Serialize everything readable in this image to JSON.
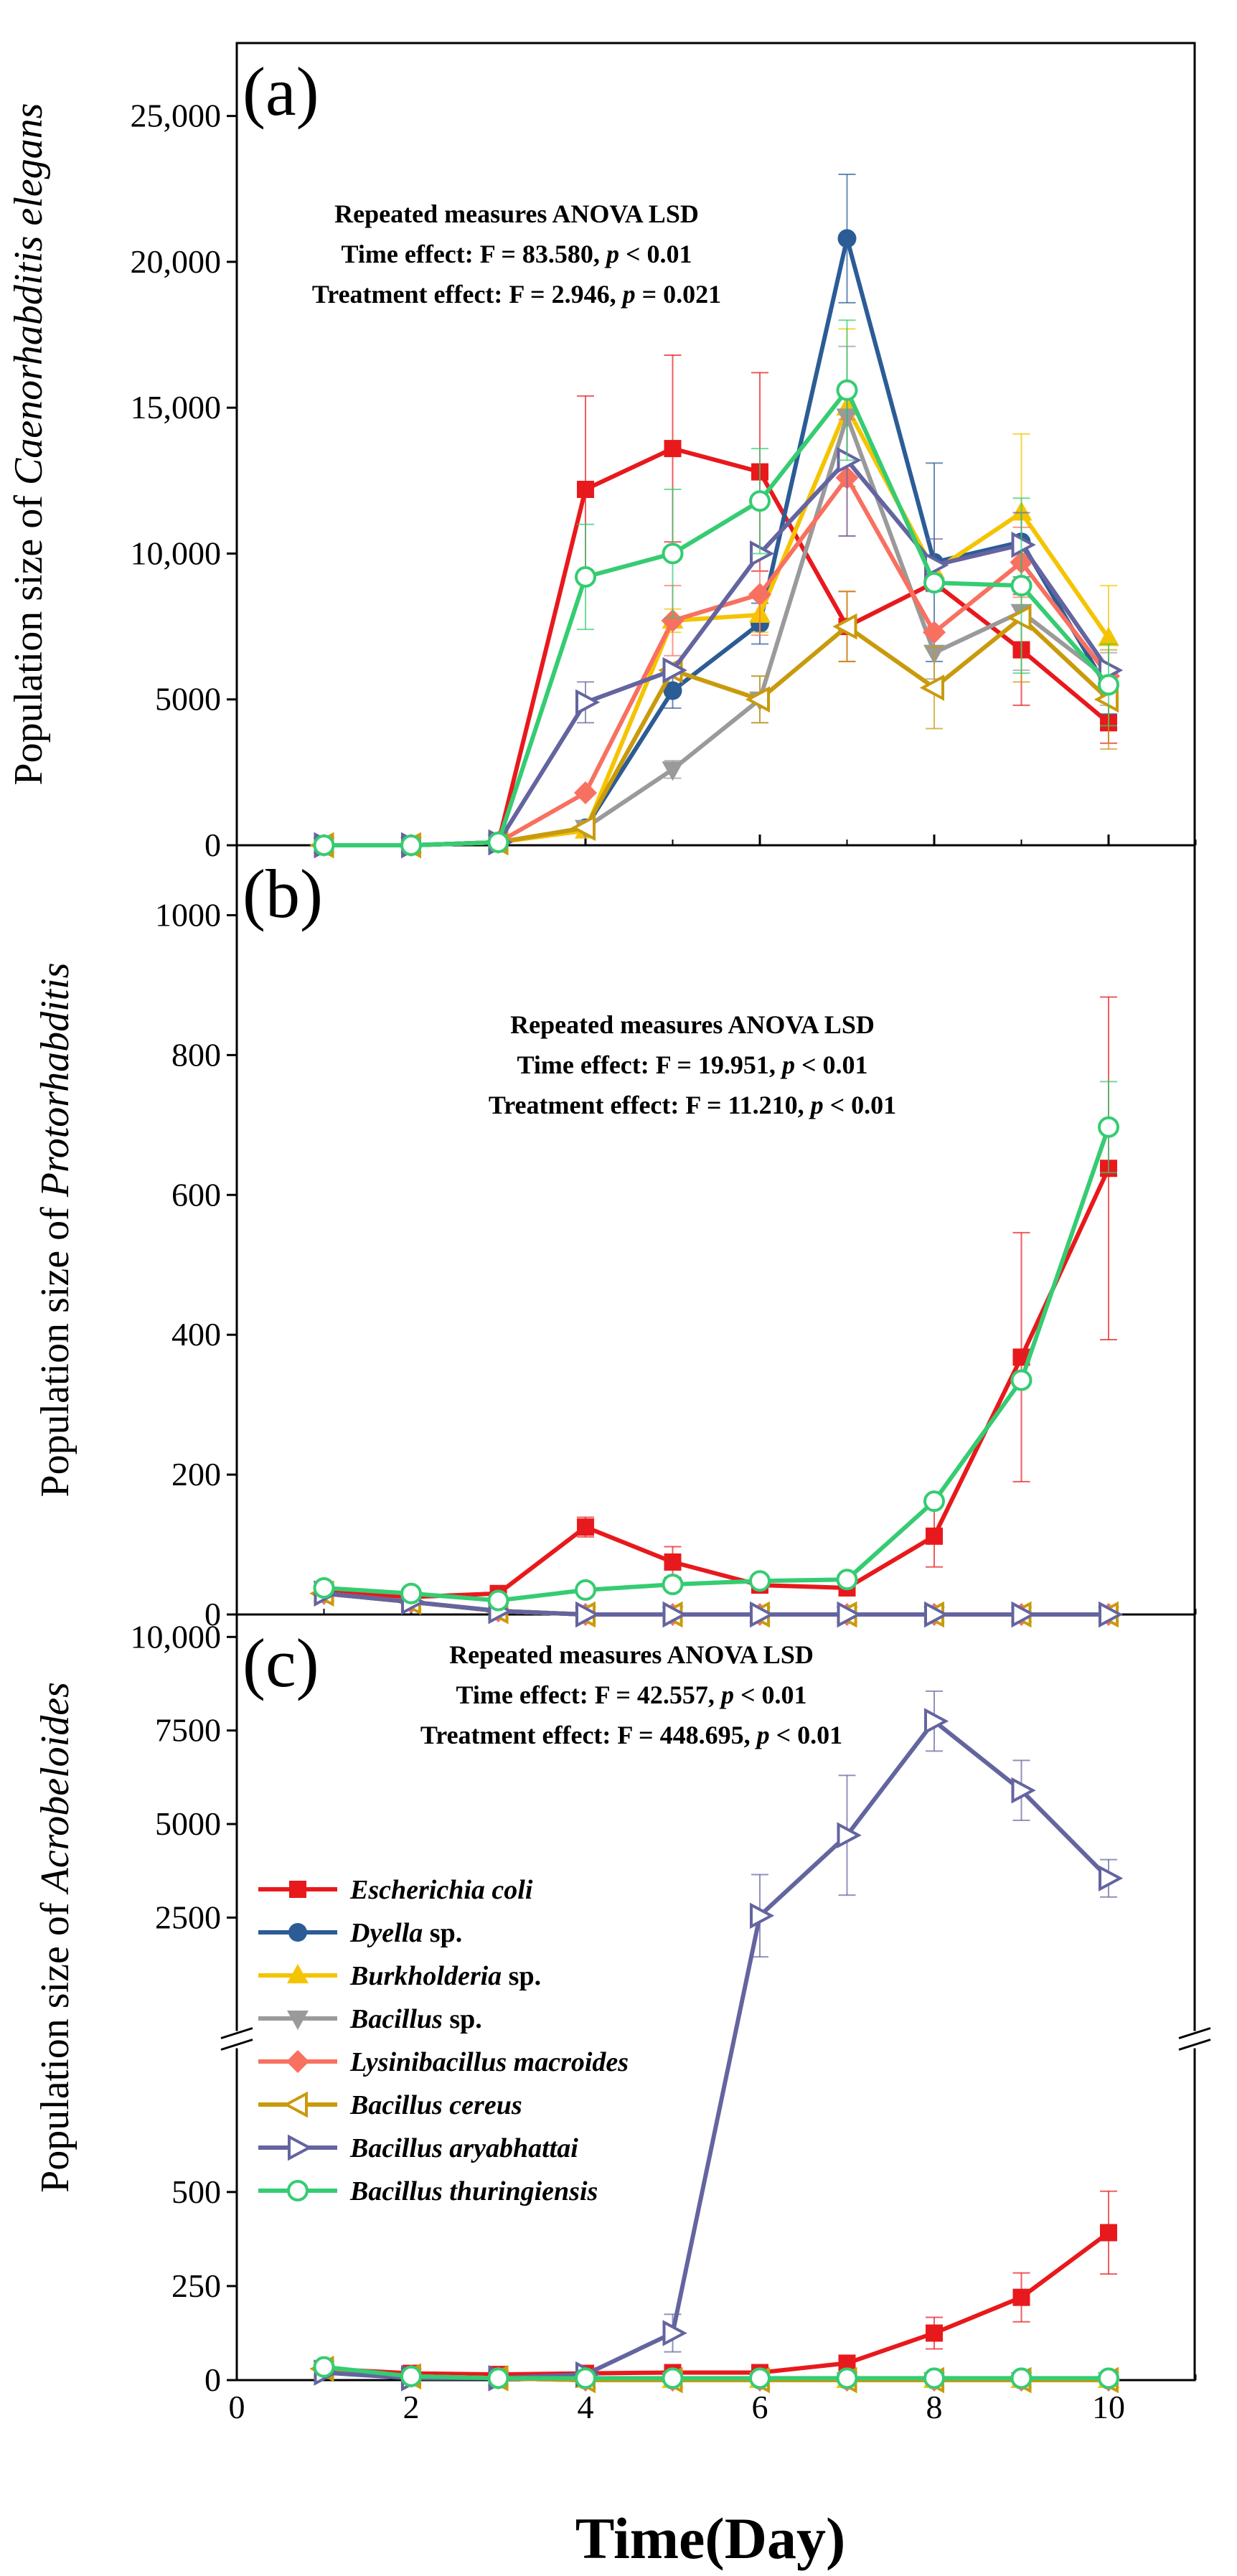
{
  "figure": {
    "xlabel": "Time(Day)",
    "x_ticks": [
      "0",
      "2",
      "4",
      "6",
      "8",
      "10"
    ]
  },
  "chart_data": [
    {
      "type": "line",
      "panel": "(a)",
      "ylabel_prefix": "Population size of ",
      "ylabel_species": "Caenorhabditis elegans",
      "ylim": [
        0,
        27500
      ],
      "y_ticks": [
        {
          "v": 0,
          "label": "0"
        },
        {
          "v": 5000,
          "label": "5000"
        },
        {
          "v": 10000,
          "label": "10,000"
        },
        {
          "v": 15000,
          "label": "15,000"
        },
        {
          "v": 20000,
          "label": "20,000"
        },
        {
          "v": 25000,
          "label": "25,000"
        }
      ],
      "stats": {
        "line1": "Repeated measures ANOVA LSD",
        "line2_pre": "Time effect: F = 83.580, ",
        "line2_post": " < 0.01",
        "line3_pre": "Treatment effect: F = 2.946, ",
        "line3_post": " = 0.021"
      },
      "x": [
        1,
        2,
        3,
        4,
        5,
        6,
        7,
        8,
        9,
        10
      ],
      "series": [
        {
          "name": "Escherichia coli",
          "values": [
            0,
            0,
            100,
            12200,
            13600,
            12800,
            7500,
            9000,
            6700,
            4200
          ],
          "errors": [
            0,
            0,
            0,
            3200,
            3200,
            3400,
            1200,
            0,
            1900,
            700
          ]
        },
        {
          "name": "Dyella sp.",
          "values": [
            0,
            0,
            100,
            600,
            5300,
            7600,
            20800,
            9700,
            10400,
            5300
          ],
          "errors": [
            0,
            0,
            0,
            0,
            600,
            700,
            2200,
            3400,
            800,
            800
          ]
        },
        {
          "name": "Burkholderia sp.",
          "values": [
            0,
            0,
            100,
            500,
            7700,
            7900,
            15000,
            9400,
            11400,
            7100
          ],
          "errors": [
            0,
            0,
            0,
            0,
            400,
            600,
            2700,
            0,
            2700,
            1800
          ]
        },
        {
          "name": "Bacillus sp.",
          "values": [
            0,
            0,
            100,
            600,
            2600,
            5000,
            14700,
            6600,
            8000,
            5700
          ],
          "errors": [
            0,
            0,
            0,
            0,
            300,
            800,
            2400,
            900,
            2000,
            900
          ]
        },
        {
          "name": "Lysinibacillus macroides",
          "values": [
            0,
            0,
            100,
            1800,
            7700,
            8600,
            12600,
            7300,
            9700,
            5800
          ],
          "errors": [
            0,
            0,
            0,
            0,
            1200,
            1400,
            2000,
            0,
            1200,
            0
          ]
        },
        {
          "name": "Bacillus cereus",
          "values": [
            0,
            0,
            100,
            600,
            6000,
            5000,
            7500,
            5400,
            7800,
            5000
          ],
          "errors": [
            0,
            0,
            0,
            0,
            0,
            800,
            1200,
            1400,
            2200,
            1700
          ]
        },
        {
          "name": "Bacillus aryabhattai",
          "values": [
            0,
            0,
            100,
            4900,
            6000,
            10000,
            13200,
            9600,
            10300,
            6000
          ],
          "errors": [
            0,
            0,
            0,
            700,
            0,
            0,
            2600,
            900,
            1100,
            0
          ]
        },
        {
          "name": "Bacillus thuringiensis",
          "values": [
            0,
            0,
            100,
            9200,
            10000,
            11800,
            15600,
            9000,
            8900,
            5500
          ],
          "errors": [
            0,
            0,
            0,
            1800,
            2200,
            1800,
            2400,
            0,
            3000,
            1400
          ]
        }
      ]
    },
    {
      "type": "line",
      "panel": "(b)",
      "ylabel_prefix": "Population size of ",
      "ylabel_species": "Protorhabditis",
      "ylim": [
        0,
        1100
      ],
      "y_ticks": [
        {
          "v": 0,
          "label": "0"
        },
        {
          "v": 200,
          "label": "200"
        },
        {
          "v": 400,
          "label": "400"
        },
        {
          "v": 600,
          "label": "600"
        },
        {
          "v": 800,
          "label": "800"
        },
        {
          "v": 1000,
          "label": "1000"
        }
      ],
      "stats": {
        "line1": "Repeated measures ANOVA LSD",
        "line2_pre": "Time effect: F = 19.951, ",
        "line2_post": " < 0.01",
        "line3_pre": "Treatment effect: F = 11.210, ",
        "line3_post": " < 0.01"
      },
      "x": [
        1,
        2,
        3,
        4,
        5,
        6,
        7,
        8,
        9,
        10
      ],
      "series": [
        {
          "name": "Escherichia coli",
          "values": [
            33,
            25,
            30,
            125,
            75,
            42,
            38,
            112,
            368,
            638
          ],
          "errors": [
            0,
            0,
            0,
            14,
            22,
            0,
            0,
            44,
            178,
            245
          ]
        },
        {
          "name": "Dyella sp.",
          "values": [
            30,
            18,
            5,
            0,
            0,
            0,
            0,
            0,
            0,
            0
          ],
          "errors": [
            0,
            0,
            0,
            0,
            0,
            0,
            0,
            0,
            0,
            0
          ]
        },
        {
          "name": "Burkholderia sp.",
          "values": [
            30,
            18,
            5,
            0,
            0,
            0,
            0,
            0,
            0,
            0
          ],
          "errors": [
            0,
            0,
            0,
            0,
            0,
            0,
            0,
            0,
            0,
            0
          ]
        },
        {
          "name": "Bacillus sp.",
          "values": [
            30,
            18,
            5,
            0,
            0,
            0,
            0,
            0,
            0,
            0
          ],
          "errors": [
            0,
            0,
            0,
            0,
            0,
            0,
            0,
            0,
            0,
            0
          ]
        },
        {
          "name": "Lysinibacillus macroides",
          "values": [
            30,
            18,
            5,
            0,
            0,
            0,
            0,
            0,
            0,
            0
          ],
          "errors": [
            0,
            0,
            0,
            0,
            0,
            0,
            0,
            0,
            0,
            0
          ]
        },
        {
          "name": "Bacillus cereus",
          "values": [
            30,
            18,
            5,
            0,
            0,
            0,
            0,
            0,
            0,
            0
          ],
          "errors": [
            0,
            0,
            0,
            0,
            0,
            0,
            0,
            0,
            0,
            0
          ]
        },
        {
          "name": "Bacillus aryabhattai",
          "values": [
            30,
            18,
            5,
            0,
            0,
            0,
            0,
            0,
            0,
            0
          ],
          "errors": [
            0,
            0,
            0,
            0,
            0,
            0,
            0,
            0,
            0,
            0
          ]
        },
        {
          "name": "Bacillus thuringiensis",
          "values": [
            38,
            30,
            20,
            35,
            43,
            48,
            50,
            162,
            335,
            697
          ],
          "errors": [
            0,
            0,
            0,
            0,
            0,
            0,
            0,
            0,
            0,
            65
          ]
        }
      ]
    },
    {
      "type": "line",
      "panel": "(c)",
      "ylabel_prefix": "Population size of ",
      "ylabel_species": "Acrobeloides",
      "axis_break": {
        "lower_range": [
          0,
          700
        ],
        "upper_range": [
          1300,
          10600
        ]
      },
      "y_ticks": [
        {
          "v": 0,
          "label": "0"
        },
        {
          "v": 250,
          "label": "250"
        },
        {
          "v": 500,
          "label": "500"
        },
        {
          "v": 2500,
          "label": "2500"
        },
        {
          "v": 5000,
          "label": "5000"
        },
        {
          "v": 7500,
          "label": "7500"
        },
        {
          "v": 10000,
          "label": "10,000"
        }
      ],
      "stats": {
        "line1": "Repeated measures ANOVA LSD",
        "line2_pre": "Time effect: F = 42.557, ",
        "line2_post": " < 0.01",
        "line3_pre": "Treatment effect: F = 448.695, ",
        "line3_post": " < 0.01"
      },
      "x": [
        1,
        2,
        3,
        4,
        5,
        6,
        7,
        8,
        9,
        10
      ],
      "series": [
        {
          "name": "Escherichia coli",
          "values": [
            30,
            18,
            15,
            18,
            20,
            20,
            45,
            125,
            220,
            392
          ],
          "errors": [
            0,
            0,
            0,
            0,
            0,
            0,
            0,
            42,
            65,
            110
          ]
        },
        {
          "name": "Dyella sp.",
          "values": [
            30,
            10,
            5,
            0,
            0,
            0,
            0,
            0,
            0,
            0
          ],
          "errors": [
            0,
            0,
            0,
            0,
            0,
            0,
            0,
            0,
            0,
            0
          ]
        },
        {
          "name": "Burkholderia sp.",
          "values": [
            30,
            10,
            5,
            0,
            0,
            0,
            0,
            0,
            0,
            0
          ],
          "errors": [
            0,
            0,
            0,
            0,
            0,
            0,
            0,
            0,
            0,
            0
          ]
        },
        {
          "name": "Bacillus sp.",
          "values": [
            30,
            10,
            5,
            0,
            0,
            0,
            0,
            0,
            0,
            0
          ],
          "errors": [
            0,
            0,
            0,
            0,
            0,
            0,
            0,
            0,
            0,
            0
          ]
        },
        {
          "name": "Lysinibacillus macroides",
          "values": [
            30,
            10,
            5,
            0,
            0,
            0,
            0,
            0,
            0,
            0
          ],
          "errors": [
            0,
            0,
            0,
            0,
            0,
            0,
            0,
            0,
            0,
            0
          ]
        },
        {
          "name": "Bacillus cereus",
          "values": [
            30,
            10,
            5,
            0,
            0,
            0,
            0,
            0,
            0,
            0
          ],
          "errors": [
            0,
            0,
            0,
            0,
            0,
            0,
            0,
            0,
            0,
            0
          ]
        },
        {
          "name": "Bacillus aryabhattai",
          "values": [
            20,
            5,
            5,
            15,
            125,
            2550,
            4700,
            7750,
            5900,
            3550
          ],
          "errors": [
            0,
            0,
            0,
            0,
            50,
            1100,
            1600,
            800,
            800,
            500
          ]
        },
        {
          "name": "Bacillus thuringiensis",
          "values": [
            35,
            10,
            5,
            5,
            5,
            5,
            5,
            5,
            5,
            5
          ],
          "errors": [
            0,
            0,
            0,
            0,
            0,
            0,
            0,
            0,
            0,
            0
          ]
        }
      ]
    }
  ],
  "legend": [
    {
      "genus": "Escherichia coli",
      "suffix": "",
      "color": "#E8191C",
      "marker": "square"
    },
    {
      "genus": "Dyella",
      "suffix": " sp.",
      "color": "#2B5C96",
      "marker": "circle"
    },
    {
      "genus": "Burkholderia",
      "suffix": " sp.",
      "color": "#F5C400",
      "marker": "triangle-up"
    },
    {
      "genus": "Bacillus",
      "suffix": " sp.",
      "color": "#9A9A9A",
      "marker": "triangle-down"
    },
    {
      "genus": "Lysinibacillus macroides",
      "suffix": "",
      "color": "#F87060",
      "marker": "diamond"
    },
    {
      "genus": "Bacillus cereus",
      "suffix": "",
      "color": "#C99A0C",
      "marker": "triangle-left-open"
    },
    {
      "genus": "Bacillus aryabhattai",
      "suffix": "",
      "color": "#6464A0",
      "marker": "triangle-right-open"
    },
    {
      "genus": "Bacillus thuringiensis",
      "suffix": "",
      "color": "#35CC72",
      "marker": "circle-open"
    }
  ]
}
